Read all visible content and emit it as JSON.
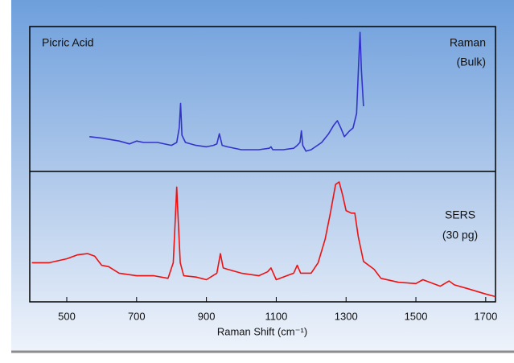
{
  "chart_data": [
    {
      "type": "line",
      "title": "Picric Acid",
      "labels": [
        "Raman",
        "(Bulk)"
      ],
      "color": "#3333cc",
      "x": [
        565,
        600,
        650,
        680,
        700,
        720,
        760,
        800,
        815,
        822,
        826,
        830,
        840,
        870,
        900,
        920,
        930,
        937,
        945,
        960,
        1000,
        1050,
        1080,
        1085,
        1090,
        1120,
        1150,
        1160,
        1168,
        1172,
        1176,
        1185,
        1200,
        1230,
        1250,
        1265,
        1275,
        1285,
        1295,
        1310,
        1320,
        1330,
        1337,
        1340,
        1344,
        1350
      ],
      "values": [
        24,
        23,
        21,
        19,
        21,
        20,
        20,
        18,
        20,
        30,
        47,
        25,
        20,
        18,
        17,
        18,
        19,
        26,
        18,
        17,
        15,
        15,
        16,
        17,
        15,
        15,
        16,
        18,
        20,
        28,
        18,
        14,
        15,
        20,
        26,
        32,
        35,
        30,
        24,
        28,
        30,
        40,
        80,
        96,
        70,
        45
      ],
      "ylim": [
        0,
        100
      ]
    },
    {
      "type": "line",
      "labels": [
        "SERS",
        "(30 pg)"
      ],
      "color": "#ee1111",
      "x": [
        400,
        450,
        500,
        530,
        560,
        580,
        600,
        620,
        650,
        700,
        750,
        790,
        805,
        812,
        815,
        818,
        825,
        835,
        870,
        900,
        930,
        940,
        948,
        960,
        1000,
        1050,
        1075,
        1085,
        1100,
        1150,
        1160,
        1170,
        1200,
        1220,
        1240,
        1255,
        1270,
        1280,
        1290,
        1300,
        1315,
        1325,
        1335,
        1350,
        1380,
        1400,
        1450,
        1500,
        1520,
        1540,
        1570,
        1595,
        1610,
        1650,
        1700,
        1728
      ],
      "values": [
        30,
        30,
        33,
        36,
        37,
        35,
        28,
        27,
        22,
        20,
        20,
        18,
        30,
        70,
        88,
        70,
        30,
        20,
        19,
        17,
        22,
        37,
        26,
        25,
        22,
        20,
        23,
        26,
        17,
        22,
        28,
        22,
        22,
        30,
        48,
        68,
        90,
        92,
        82,
        70,
        68,
        68,
        50,
        31,
        25,
        18,
        15,
        14,
        17,
        15,
        12,
        16,
        13,
        10,
        6,
        4
      ],
      "ylim": [
        0,
        100
      ],
      "xlim": [
        394,
        1728
      ],
      "xticks": [
        500,
        700,
        900,
        1100,
        1300,
        1500,
        1700
      ],
      "xlabel": "Raman Shift (cm⁻¹)"
    }
  ]
}
